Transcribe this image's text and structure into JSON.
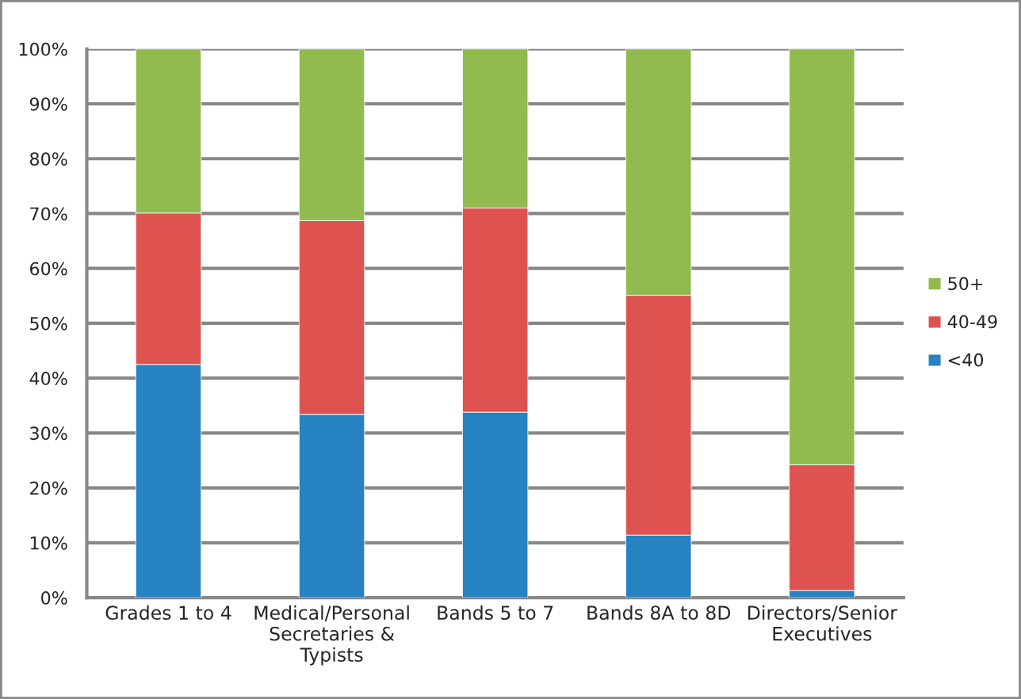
{
  "chart_data": {
    "type": "bar",
    "stacked": true,
    "categories": [
      "Grades 1 to 4",
      "Medical/Personal\nSecretaries &\nTypists",
      "Bands 5 to 7",
      "Bands 8A to 8D",
      "Directors/Senior\nExecutives"
    ],
    "series": [
      {
        "name": "<40",
        "color": "#2682c0",
        "values": [
          42.5,
          33.4,
          33.8,
          11.4,
          1.3
        ]
      },
      {
        "name": "40-49",
        "color": "#de5250",
        "values": [
          27.6,
          35.3,
          37.2,
          43.7,
          22.9
        ]
      },
      {
        "name": "50+",
        "color": "#91ba4f",
        "values": [
          29.9,
          31.3,
          29.0,
          44.9,
          75.8
        ]
      }
    ],
    "ylim": [
      0,
      100
    ],
    "yticks": [
      {
        "value": 0,
        "label": "0%"
      },
      {
        "value": 10,
        "label": "10%"
      },
      {
        "value": 20,
        "label": "20%"
      },
      {
        "value": 30,
        "label": "30%"
      },
      {
        "value": 40,
        "label": "40%"
      },
      {
        "value": 50,
        "label": "50%"
      },
      {
        "value": 60,
        "label": "60%"
      },
      {
        "value": 70,
        "label": "70%"
      },
      {
        "value": 80,
        "label": "80%"
      },
      {
        "value": 90,
        "label": "90%"
      },
      {
        "value": 100,
        "label": "100%"
      }
    ],
    "grid": "y",
    "legend": "right"
  }
}
